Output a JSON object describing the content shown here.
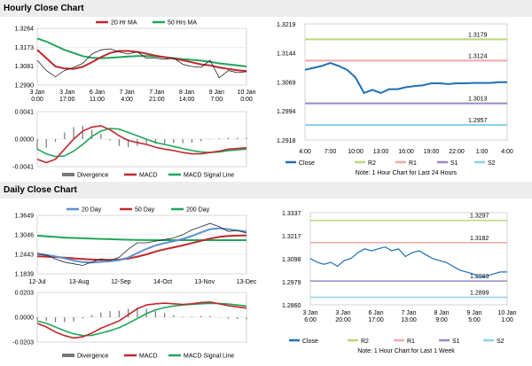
{
  "sections": {
    "hourly_title": "Hourly Close Chart",
    "daily_title": "Daily Close Chart"
  },
  "colors": {
    "close": "#1f6fb3",
    "ma20": "#c0282c",
    "ma50": "#1fa65a",
    "r2": "#b8d878",
    "r1": "#f4a6a6",
    "s1": "#9b89c4",
    "s2": "#8fd0e8",
    "macd": "#c0282c",
    "signal": "#1fa65a",
    "divergence": "#777777",
    "day20": "#5b8fd0",
    "day50": "#c0282c",
    "day200": "#1fa65a"
  },
  "chart_data": [
    {
      "id": "hourly_price",
      "type": "line",
      "legend": [
        "20 Hr MA",
        "50 Hrs MA"
      ],
      "yticks": [
        "1.3264",
        "1.3173",
        "1.3081",
        "1.2990"
      ],
      "ylim": [
        1.299,
        1.3264
      ],
      "xticks": [
        "3 Jan\n0:00",
        "3 Jan\n17:00",
        "6 Jan\n11:00",
        "7 Jan\n4:00",
        "7 Jan\n21:00",
        "8 Jan\n14:00",
        "9 Jan\n7:00",
        "10 Jan\n0:00"
      ],
      "series": [
        {
          "name": "Price",
          "values": [
            1.311,
            1.306,
            1.303,
            1.306,
            1.3075,
            1.3095,
            1.314,
            1.316,
            1.3165,
            1.315,
            1.314,
            1.315,
            1.312,
            1.312,
            1.3115,
            1.312,
            1.309,
            1.308,
            1.3075,
            1.311,
            1.3025,
            1.306,
            1.305,
            1.3055
          ]
        },
        {
          "name": "20 Hr MA",
          "values": [
            1.316,
            1.312,
            1.308,
            1.307,
            1.3068,
            1.3078,
            1.31,
            1.3125,
            1.3145,
            1.3155,
            1.3155,
            1.315,
            1.3142,
            1.3132,
            1.3125,
            1.3118,
            1.311,
            1.31,
            1.309,
            1.3085,
            1.3075,
            1.3068,
            1.3062,
            1.3058
          ]
        },
        {
          "name": "50 Hrs MA",
          "values": [
            1.3215,
            1.32,
            1.318,
            1.316,
            1.3145,
            1.313,
            1.3122,
            1.312,
            1.3122,
            1.3125,
            1.3128,
            1.313,
            1.313,
            1.3128,
            1.3125,
            1.312,
            1.3115,
            1.3112,
            1.3108,
            1.3102,
            1.3095,
            1.309,
            1.3085,
            1.308
          ]
        }
      ]
    },
    {
      "id": "hourly_macd",
      "type": "line",
      "yticks": [
        "0.0041",
        "0.0000",
        "-0.0041"
      ],
      "ylim": [
        -0.0041,
        0.0041
      ],
      "legend": [
        "Divergence",
        "MACD",
        "MACD Signal Line"
      ],
      "series": [
        {
          "name": "MACD",
          "values": [
            -0.003,
            -0.0035,
            -0.003,
            -0.0015,
            0.0,
            0.0012,
            0.0018,
            0.002,
            0.0014,
            0.0005,
            -0.0002,
            -0.0005,
            -0.0008,
            -0.0012,
            -0.0015,
            -0.0017,
            -0.002,
            -0.0022,
            -0.0022,
            -0.002,
            -0.0018,
            -0.0015,
            -0.0014,
            -0.0013
          ]
        },
        {
          "name": "MACD Signal Line",
          "values": [
            -0.0015,
            -0.0022,
            -0.0026,
            -0.0025,
            -0.0018,
            -0.0008,
            0.0004,
            0.0012,
            0.0016,
            0.0015,
            0.001,
            0.0005,
            0.0,
            -0.0005,
            -0.0008,
            -0.0011,
            -0.0014,
            -0.0017,
            -0.0019,
            -0.002,
            -0.0019,
            -0.0017,
            -0.0016,
            -0.0015
          ]
        },
        {
          "name": "Divergence",
          "values": [
            -0.0015,
            -0.0013,
            -0.0004,
            0.001,
            0.0018,
            0.002,
            0.0014,
            0.0008,
            -0.0002,
            -0.001,
            -0.0012,
            -0.001,
            -0.0008,
            -0.0007,
            -0.0007,
            -0.0006,
            -0.0006,
            -0.0005,
            -0.0003,
            0.0,
            0.0001,
            0.0002,
            0.0002,
            0.0002
          ]
        }
      ]
    },
    {
      "id": "hourly_close",
      "type": "line",
      "yticks": [
        "1.3219",
        "1.3144",
        "1.3069",
        "1.2994",
        "1.2918"
      ],
      "ylim": [
        1.2918,
        1.3219
      ],
      "xticks": [
        "4:00",
        "7:00",
        "10:00",
        "13:00",
        "16:00",
        "19:00",
        "22:00",
        "1:00",
        "4:00"
      ],
      "levels": [
        {
          "name": "R2",
          "value": 1.3179,
          "label": "1.3179"
        },
        {
          "name": "R1",
          "value": 1.3124,
          "label": "1.3124"
        },
        {
          "name": "S1",
          "value": 1.3013,
          "label": "1.3013"
        },
        {
          "name": "S2",
          "value": 1.2957,
          "label": "1.2957"
        }
      ],
      "series": [
        {
          "name": "Close",
          "values": [
            1.31,
            1.3105,
            1.311,
            1.3118,
            1.311,
            1.31,
            1.308,
            1.304,
            1.3048,
            1.304,
            1.305,
            1.305,
            1.3055,
            1.3058,
            1.306,
            1.3065,
            1.3065,
            1.3063,
            1.3065,
            1.3065,
            1.3066,
            1.3066,
            1.3066,
            1.3068,
            1.3068
          ]
        }
      ],
      "legend": [
        "Close",
        "R2",
        "R1",
        "S1",
        "S2"
      ],
      "note": "Note: 1 Hour Chart for Last 24 Hours"
    },
    {
      "id": "daily_price",
      "type": "line",
      "legend": [
        "20 Day",
        "50 Day",
        "200 Day"
      ],
      "yticks": [
        "1.3649",
        "1.3046",
        "1.2443",
        "1.1839"
      ],
      "ylim": [
        1.1839,
        1.3649
      ],
      "xticks": [
        "12-Jul",
        "13-Aug",
        "12-Sep",
        "14-Oct",
        "13-Nov",
        "13-Dec"
      ],
      "series": [
        {
          "name": "Price",
          "values": [
            1.248,
            1.242,
            1.23,
            1.22,
            1.215,
            1.21,
            1.22,
            1.23,
            1.225,
            1.235,
            1.26,
            1.28,
            1.28,
            1.285,
            1.29,
            1.295,
            1.305,
            1.32,
            1.33,
            1.34,
            1.33,
            1.315,
            1.318,
            1.31
          ]
        },
        {
          "name": "20 Day",
          "values": [
            1.245,
            1.242,
            1.238,
            1.232,
            1.225,
            1.22,
            1.219,
            1.221,
            1.223,
            1.226,
            1.234,
            1.248,
            1.261,
            1.272,
            1.279,
            1.285,
            1.292,
            1.301,
            1.312,
            1.322,
            1.325,
            1.322,
            1.318,
            1.315
          ]
        },
        {
          "name": "50 Day",
          "values": [
            1.238,
            1.237,
            1.236,
            1.234,
            1.232,
            1.23,
            1.228,
            1.227,
            1.227,
            1.228,
            1.231,
            1.237,
            1.244,
            1.253,
            1.26,
            1.266,
            1.272,
            1.279,
            1.286,
            1.293,
            1.298,
            1.301,
            1.302,
            1.303
          ]
        },
        {
          "name": "200 Day",
          "values": [
            1.302,
            1.3,
            1.298,
            1.296,
            1.295,
            1.294,
            1.293,
            1.292,
            1.291,
            1.29,
            1.2895,
            1.289,
            1.2885,
            1.288,
            1.288,
            1.288,
            1.288,
            1.288,
            1.288,
            1.288,
            1.288,
            1.288,
            1.288,
            1.288
          ]
        }
      ]
    },
    {
      "id": "daily_macd",
      "type": "line",
      "yticks": [
        "0.0203",
        "0.0000",
        "-0.0203"
      ],
      "ylim": [
        -0.0203,
        0.0203
      ],
      "legend": [
        "Divergence",
        "MACD",
        "MACD Signal Line"
      ],
      "series": [
        {
          "name": "MACD",
          "values": [
            -0.005,
            -0.008,
            -0.012,
            -0.015,
            -0.017,
            -0.016,
            -0.013,
            -0.009,
            -0.006,
            -0.003,
            0.002,
            0.007,
            0.01,
            0.011,
            0.0115,
            0.011,
            0.0105,
            0.011,
            0.012,
            0.0125,
            0.011,
            0.0095,
            0.0085,
            0.0075
          ]
        },
        {
          "name": "MACD Signal Line",
          "values": [
            -0.003,
            -0.005,
            -0.008,
            -0.011,
            -0.0135,
            -0.015,
            -0.0148,
            -0.013,
            -0.011,
            -0.0085,
            -0.005,
            -0.001,
            0.003,
            0.006,
            0.008,
            0.0092,
            0.01,
            0.0105,
            0.011,
            0.0114,
            0.0113,
            0.0108,
            0.01,
            0.0092
          ]
        },
        {
          "name": "Divergence",
          "values": [
            -0.002,
            -0.003,
            -0.004,
            -0.004,
            -0.0035,
            -0.001,
            0.0018,
            0.004,
            0.005,
            0.0055,
            0.007,
            0.008,
            0.007,
            0.005,
            0.0035,
            0.0018,
            0.0005,
            0.0005,
            0.001,
            0.0011,
            -0.0003,
            -0.0013,
            -0.0015,
            -0.0017
          ]
        }
      ]
    },
    {
      "id": "daily_close",
      "type": "line",
      "yticks": [
        "1.3337",
        "1.3217",
        "1.3098",
        "1.2979",
        "1.2860"
      ],
      "ylim": [
        1.286,
        1.3337
      ],
      "xticks": [
        "3 Jan\n6:00",
        "3 Jan\n20:00",
        "6 Jan\n17:00",
        "7 Jan\n13:00",
        "8 Jan\n9:00",
        "9 Jan\n5:00",
        "10 Jan\n1:00"
      ],
      "levels": [
        {
          "name": "R2",
          "value": 1.3297,
          "label": "1.3297"
        },
        {
          "name": "R1",
          "value": 1.3182,
          "label": "1.3182"
        },
        {
          "name": "S1",
          "value": 1.2983,
          "label": "1.2983"
        },
        {
          "name": "S2",
          "value": 1.2899,
          "label": "1.2899"
        }
      ],
      "series": [
        {
          "name": "Close",
          "values": [
            1.31,
            1.308,
            1.307,
            1.308,
            1.306,
            1.309,
            1.31,
            1.313,
            1.315,
            1.314,
            1.315,
            1.316,
            1.314,
            1.315,
            1.311,
            1.313,
            1.314,
            1.312,
            1.31,
            1.309,
            1.308,
            1.306,
            1.304,
            1.303,
            1.302,
            1.3,
            1.301,
            1.302,
            1.303,
            1.303
          ]
        }
      ],
      "legend": [
        "Close",
        "R2",
        "R1",
        "S1",
        "S2"
      ],
      "note": "Note: 1 Hour Chart for Last 1 Week"
    }
  ]
}
